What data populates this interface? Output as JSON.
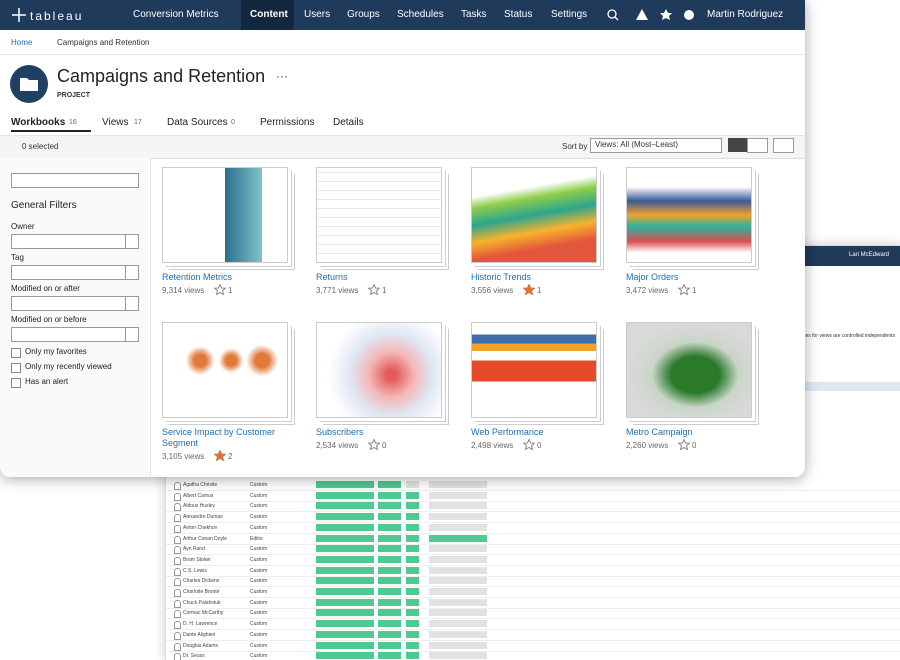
{
  "nav": {
    "logo": "tableau",
    "site": "Conversion Metrics",
    "items": [
      "Content",
      "Users",
      "Groups",
      "Schedules",
      "Tasks",
      "Status",
      "Settings"
    ],
    "user": "Martin Rodriguez"
  },
  "breadcrumb": {
    "home": "Home",
    "current": "Campaigns and Retention"
  },
  "header": {
    "title": "Campaigns and Retention",
    "more": "···",
    "kind": "PROJECT"
  },
  "tabs": [
    {
      "label": "Workbooks",
      "count": "16"
    },
    {
      "label": "Views",
      "count": "17"
    },
    {
      "label": "Data Sources",
      "count": "0"
    },
    {
      "label": "Permissions"
    },
    {
      "label": "Details"
    }
  ],
  "toolbar": {
    "selected": "0 selected",
    "sort_label": "Sort by",
    "sort_value": "Views: All (Most–Least)"
  },
  "filters": {
    "title": "General Filters",
    "dropdowns": [
      "Owner",
      "Tag",
      "Modified on or after",
      "Modified on or before"
    ],
    "checkboxes": [
      "Only my favorites",
      "Only my recently viewed",
      "Has an alert"
    ]
  },
  "workbooks": [
    {
      "title": "Retention Metrics",
      "views": "9,314 views",
      "favorites": "1",
      "favorited": false
    },
    {
      "title": "Returns",
      "views": "3,771 views",
      "favorites": "1",
      "favorited": false
    },
    {
      "title": "Historic Trends",
      "views": "3,556 views",
      "favorites": "1",
      "favorited": true
    },
    {
      "title": "Major Orders",
      "views": "3,472 views",
      "favorites": "1",
      "favorited": false
    },
    {
      "title": "Service Impact by Customer Segment",
      "views": "3,105 views",
      "favorites": "2",
      "favorited": true
    },
    {
      "title": "Subscribers",
      "views": "2,534 views",
      "favorites": "0",
      "favorited": false
    },
    {
      "title": "Web Performance",
      "views": "2,498 views",
      "favorites": "0",
      "favorited": false
    },
    {
      "title": "Metro Campaign",
      "views": "2,260 views",
      "favorites": "0",
      "favorited": false
    }
  ],
  "back_window": {
    "user": "Lari McEdward",
    "note": "ces for views are controlled independents",
    "users": [
      {
        "name": "Agatha Christie",
        "role": "Custom"
      },
      {
        "name": "Albert Camus",
        "role": "Custom"
      },
      {
        "name": "Aldous Huxley",
        "role": "Custom"
      },
      {
        "name": "Alexandre Dumas",
        "role": "Custom"
      },
      {
        "name": "Anton Chekhov",
        "role": "Custom"
      },
      {
        "name": "Arthur Conan Doyle",
        "role": "Editor"
      },
      {
        "name": "Ayn Rand",
        "role": "Custom"
      },
      {
        "name": "Bram Stoker",
        "role": "Custom"
      },
      {
        "name": "C.S. Lewis",
        "role": "Custom"
      },
      {
        "name": "Charles Dickens",
        "role": "Custom"
      },
      {
        "name": "Charlotte Brontë",
        "role": "Custom"
      },
      {
        "name": "Chuck Palahniuk",
        "role": "Custom"
      },
      {
        "name": "Cormac McCarthy",
        "role": "Custom"
      },
      {
        "name": "D. H. Lawrence",
        "role": "Custom"
      },
      {
        "name": "Dante Alighieri",
        "role": "Custom"
      },
      {
        "name": "Douglas Adams",
        "role": "Custom"
      },
      {
        "name": "Dr. Seuss",
        "role": "Custom"
      }
    ]
  }
}
